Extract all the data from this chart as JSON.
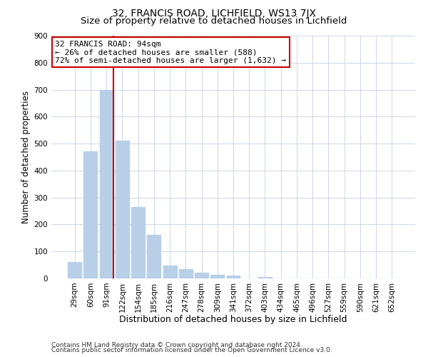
{
  "title": "32, FRANCIS ROAD, LICHFIELD, WS13 7JX",
  "subtitle": "Size of property relative to detached houses in Lichfield",
  "xlabel": "Distribution of detached houses by size in Lichfield",
  "ylabel": "Number of detached properties",
  "bar_labels": [
    "29sqm",
    "60sqm",
    "91sqm",
    "122sqm",
    "154sqm",
    "185sqm",
    "216sqm",
    "247sqm",
    "278sqm",
    "309sqm",
    "341sqm",
    "372sqm",
    "403sqm",
    "434sqm",
    "465sqm",
    "496sqm",
    "527sqm",
    "559sqm",
    "590sqm",
    "621sqm",
    "652sqm"
  ],
  "bar_values": [
    60,
    470,
    700,
    510,
    265,
    162,
    48,
    35,
    22,
    12,
    10,
    0,
    5,
    0,
    0,
    0,
    0,
    0,
    0,
    0,
    0
  ],
  "bar_color": "#b8cfe8",
  "vline_index": 2,
  "vline_color": "#cc0000",
  "annotation_line1": "32 FRANCIS ROAD: 94sqm",
  "annotation_line2": "← 26% of detached houses are smaller (588)",
  "annotation_line3": "72% of semi-detached houses are larger (1,632) →",
  "annotation_box_facecolor": "#ffffff",
  "annotation_box_edgecolor": "#cc0000",
  "ylim": [
    0,
    900
  ],
  "yticks": [
    0,
    100,
    200,
    300,
    400,
    500,
    600,
    700,
    800,
    900
  ],
  "footer1": "Contains HM Land Registry data © Crown copyright and database right 2024.",
  "footer2": "Contains public sector information licensed under the Open Government Licence v3.0.",
  "background_color": "#ffffff",
  "grid_color": "#ccd6e8",
  "title_fontsize": 10,
  "subtitle_fontsize": 9.5,
  "xlabel_fontsize": 9,
  "ylabel_fontsize": 8.5,
  "tick_fontsize": 7.5,
  "annotation_fontsize": 8,
  "footer_fontsize": 6.5
}
